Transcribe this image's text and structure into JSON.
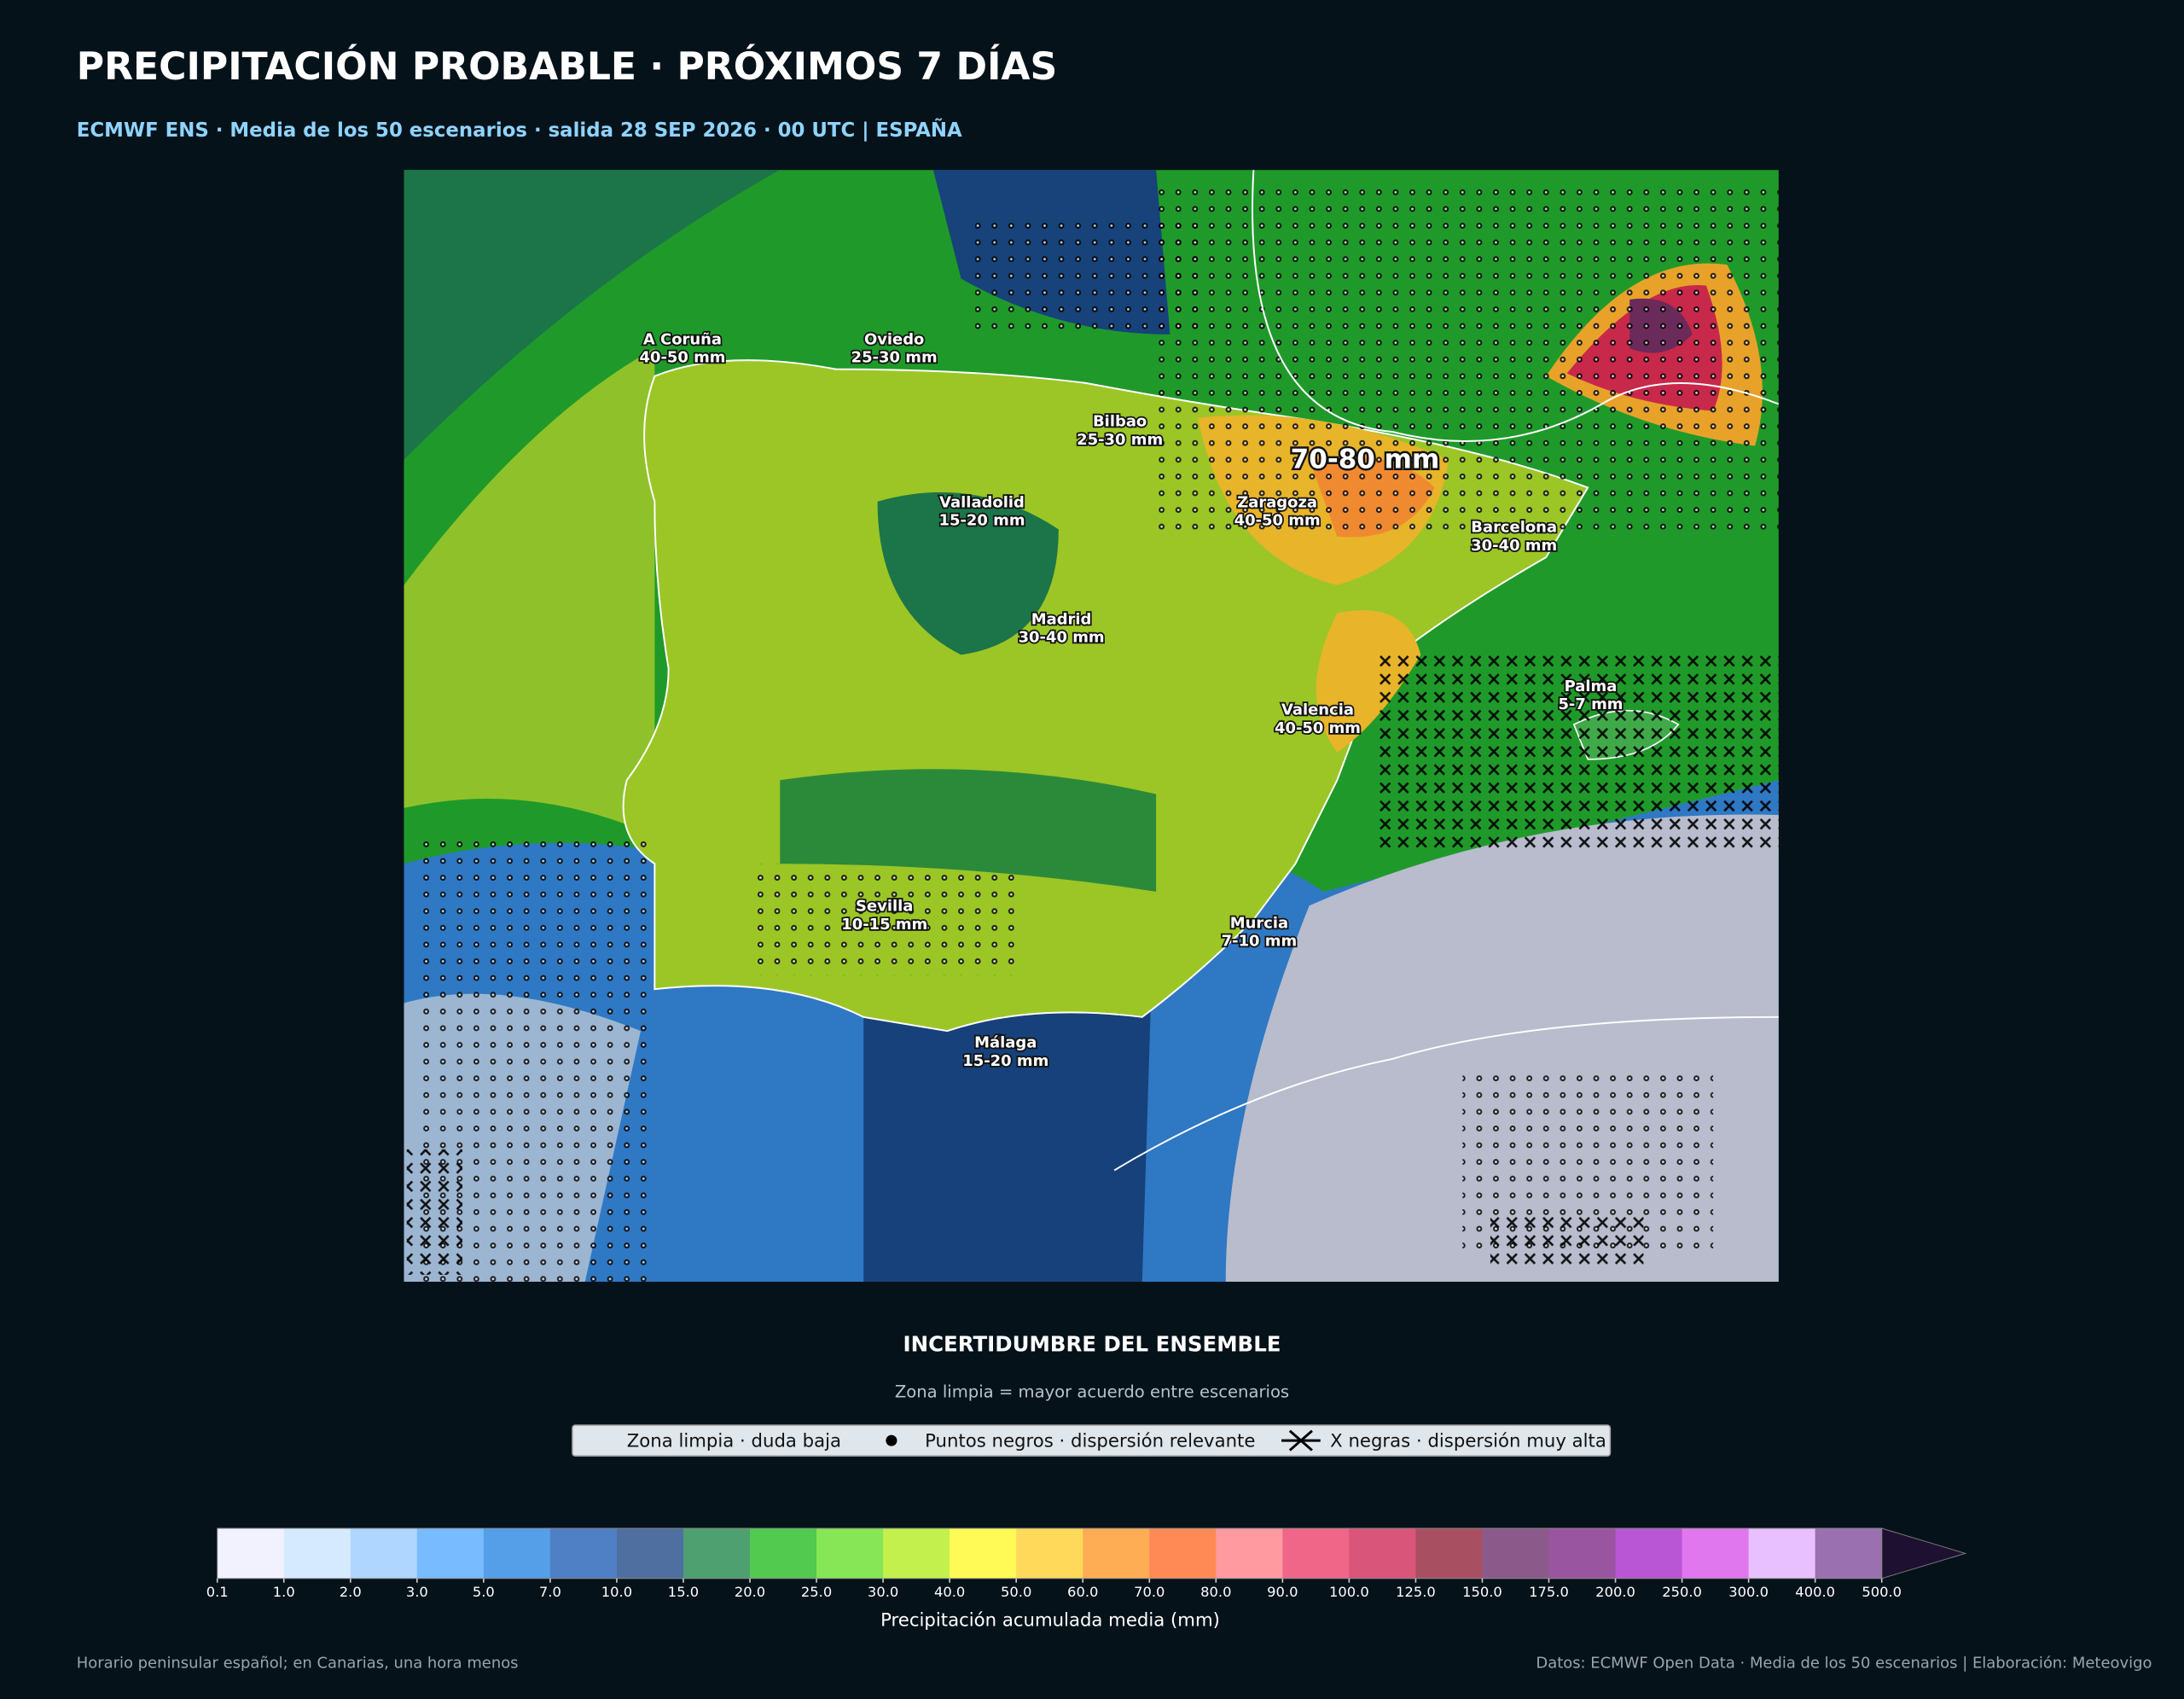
{
  "header": {
    "title": "PRECIPITACIÓN PROBABLE · PRÓXIMOS 7 DÍAS",
    "subtitle": "ECMWF ENS · Media de los 50 escenarios · salida 28 SEP 2026 · 00 UTC | ESPAÑA"
  },
  "map": {
    "annotation": "70-80 mm",
    "cities": [
      {
        "name": "A Coruña",
        "range": "40-50 mm"
      },
      {
        "name": "Oviedo",
        "range": "25-30 mm"
      },
      {
        "name": "Bilbao",
        "range": "25-30 mm"
      },
      {
        "name": "Valladolid",
        "range": "15-20 mm"
      },
      {
        "name": "Zaragoza",
        "range": "40-50 mm"
      },
      {
        "name": "Barcelona",
        "range": "30-40 mm"
      },
      {
        "name": "Madrid",
        "range": "30-40 mm"
      },
      {
        "name": "Valencia",
        "range": "40-50 mm"
      },
      {
        "name": "Palma",
        "range": "5-7 mm"
      },
      {
        "name": "Sevilla",
        "range": "10-15 mm"
      },
      {
        "name": "Murcia",
        "range": "7-10 mm"
      },
      {
        "name": "Málaga",
        "range": "15-20 mm"
      }
    ]
  },
  "uncertainty": {
    "title": "INCERTIDUMBRE DEL ENSEMBLE",
    "subtitle": "Zona limpia = mayor acuerdo entre escenarios",
    "legend": [
      "Zona limpia · duda baja",
      "Puntos negros · dispersión relevante",
      "X negras · dispersión muy alta"
    ]
  },
  "colorbar": {
    "label": "Precipitación acumulada media (mm)",
    "ticks": [
      "0.1",
      "1.0",
      "2.0",
      "3.0",
      "5.0",
      "7.0",
      "10.0",
      "15.0",
      "20.0",
      "25.0",
      "30.0",
      "40.0",
      "50.0",
      "60.0",
      "70.0",
      "80.0",
      "90.0",
      "100.0",
      "125.0",
      "150.0",
      "175.0",
      "200.0",
      "250.0",
      "300.0",
      "400.0",
      "500.0"
    ],
    "colors": [
      "#f2f2ff",
      "#d6eaff",
      "#aed6ff",
      "#78bbff",
      "#559ee8",
      "#4f7fc4",
      "#4e6fa0",
      "#4fa070",
      "#52c94f",
      "#86e655",
      "#c4f04e",
      "#fffa55",
      "#ffd95a",
      "#ffad55",
      "#ff8a55",
      "#ff9aa0",
      "#f06688",
      "#d9557a",
      "#a85062",
      "#8c5a8a",
      "#9a55a0",
      "#b856d6",
      "#e077ee",
      "#e8c0ff",
      "#9a70b0"
    ],
    "extend_color": "#1e1030"
  },
  "footer": {
    "left": "Horario peninsular español; en Canarias, una hora menos",
    "right": "Datos: ECMWF Open Data · Media de los 50 escenarios | Elaboración: Meteovigo"
  }
}
